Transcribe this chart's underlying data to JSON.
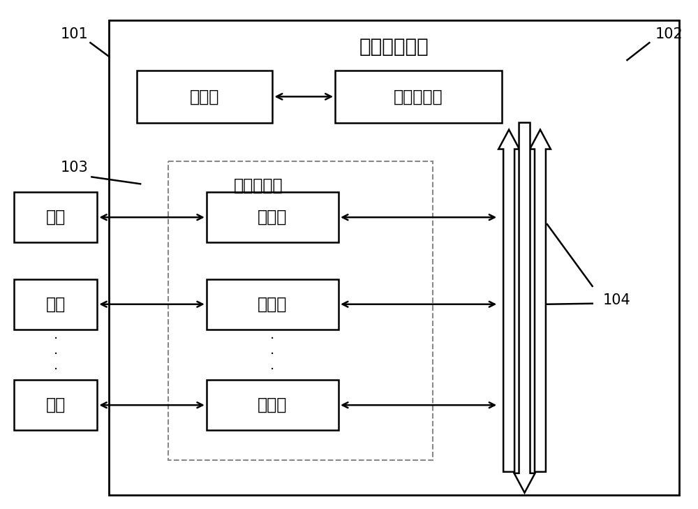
{
  "bg_color": "#ffffff",
  "line_color": "#000000",
  "dashed_color": "#888888",
  "title": "电机驱动系统",
  "label_101": "101",
  "label_102": "102",
  "label_103": "103",
  "label_104": "104",
  "box_controller": "控制器",
  "box_first_driver": "第一驱动器",
  "box_second_driver_label": "第二驱动器",
  "box_driver": "驱动器",
  "box_motor": "电机",
  "font_size_title": 20,
  "font_size_box": 17,
  "font_size_label": 15
}
